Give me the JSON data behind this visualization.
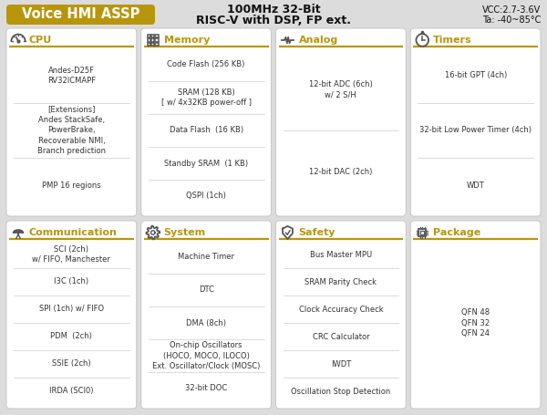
{
  "bg_color": "#dcdcdc",
  "header_bg": "#B8960C",
  "header_text": "Voice HMI ASSP",
  "center_title_line1": "100MHz 32-Bit",
  "center_title_line2": "RISC-V with DSP, FP ext.",
  "card_bg": "#ffffff",
  "accent_color": "#B8960C",
  "text_color": "#333333",
  "title_color": "#B8960C",
  "icon_color": "#555555",
  "blocks": [
    {
      "title": "CPU",
      "icon": "cpu",
      "row": 0,
      "col": 0,
      "lines": [
        "Andes-D25F\nRV32ICMAPF",
        "[Extensions]\nAndes StackSafe,\nPowerBrake,\nRecoverable NMI,\nBranch prediction",
        "PMP 16 regions"
      ]
    },
    {
      "title": "Memory",
      "icon": "memory",
      "row": 0,
      "col": 1,
      "lines": [
        "Code Flash (256 KB)",
        "SRAM (128 KB)\n[ w/ 4x32KB power-off ]",
        "Data Flash  (16 KB)",
        "Standby SRAM  (1 KB)",
        "QSPI (1ch)"
      ]
    },
    {
      "title": "Analog",
      "icon": "analog",
      "row": 0,
      "col": 2,
      "lines": [
        "12-bit ADC (6ch)\nw/ 2 S/H",
        "12-bit DAC (2ch)"
      ]
    },
    {
      "title": "Timers",
      "icon": "timer",
      "row": 0,
      "col": 3,
      "lines": [
        "16-bit GPT (4ch)",
        "32-bit Low Power Timer (4ch)",
        "WDT"
      ]
    },
    {
      "title": "Communication",
      "icon": "comm",
      "row": 1,
      "col": 0,
      "lines": [
        "SCI (2ch)\nw/ FIFO, Manchester",
        "I3C (1ch)",
        "SPI (1ch) w/ FIFO",
        "PDM  (2ch)",
        "SSIE (2ch)",
        "IRDA (SCI0)"
      ]
    },
    {
      "title": "System",
      "icon": "system",
      "row": 1,
      "col": 1,
      "lines": [
        "Machine Timer",
        "DTC",
        "DMA (8ch)",
        "On-chip Oscillators\n(HOCO, MOCO, ILOCO)\nExt. Oscillator/Clock (MOSC)",
        "32-bit DOC"
      ]
    },
    {
      "title": "Safety",
      "icon": "safety",
      "row": 1,
      "col": 2,
      "lines": [
        "Bus Master MPU",
        "SRAM Parity Check",
        "Clock Accuracy Check",
        "CRC Calculator",
        "IWDT",
        "Oscillation Stop Detection"
      ]
    },
    {
      "title": "Package",
      "icon": "package",
      "row": 1,
      "col": 3,
      "lines": [
        "QFN 48\nQFN 32\nQFN 24"
      ]
    }
  ]
}
